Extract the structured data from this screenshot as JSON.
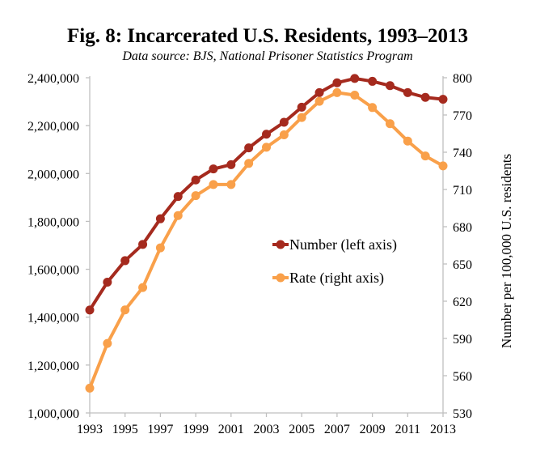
{
  "chart_data": {
    "type": "line",
    "title": "Fig. 8: Incarcerated U.S. Residents, 1993–2013",
    "subtitle": "Data source: BJS, National Prisoner Statistics Program",
    "xlabel": "",
    "ylabel_left": "",
    "ylabel_right": "Number per 100,000 U.S. residents",
    "x": [
      1993,
      1994,
      1995,
      1996,
      1997,
      1998,
      1999,
      2000,
      2001,
      2002,
      2003,
      2004,
      2005,
      2006,
      2007,
      2008,
      2009,
      2010,
      2011,
      2012,
      2013
    ],
    "x_ticks": [
      "1993",
      "1995",
      "1997",
      "1999",
      "2001",
      "2003",
      "2005",
      "2007",
      "2009",
      "2011",
      "2013"
    ],
    "ylim_left": [
      1000000,
      2400000
    ],
    "y_ticks_left": [
      "1,000,000",
      "1,200,000",
      "1,400,000",
      "1,600,000",
      "1,800,000",
      "2,000,000",
      "2,200,000",
      "2,400,000"
    ],
    "ylim_right": [
      530,
      800
    ],
    "y_ticks_right": [
      "530",
      "560",
      "590",
      "620",
      "650",
      "680",
      "710",
      "740",
      "770",
      "800"
    ],
    "grid": false,
    "legend_position": "center-right",
    "series": [
      {
        "name": "Number (left axis)",
        "axis": "left",
        "color": "#A52A1E",
        "values": [
          1430000,
          1546000,
          1636000,
          1704000,
          1811000,
          1904000,
          1973000,
          2019000,
          2037000,
          2107000,
          2164000,
          2214000,
          2277000,
          2338000,
          2379000,
          2397000,
          2385000,
          2367000,
          2338000,
          2318000,
          2310000
        ]
      },
      {
        "name": "Rate (right axis)",
        "axis": "right",
        "color": "#F9A04A",
        "values": [
          550,
          586,
          613,
          631,
          663,
          689,
          705,
          714,
          714,
          731,
          744,
          754,
          768,
          781,
          788,
          786,
          776,
          763,
          749,
          737,
          729
        ]
      }
    ]
  }
}
